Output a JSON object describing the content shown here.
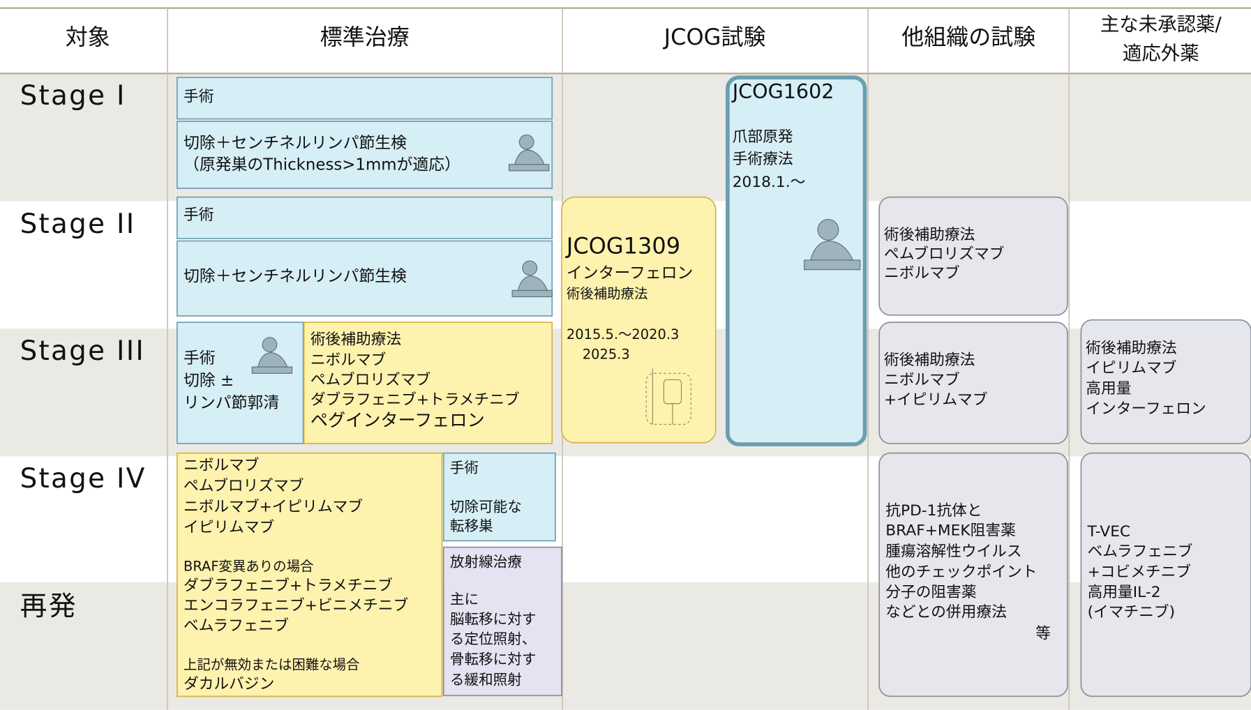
{
  "header": {
    "columns": [
      [
        "対象"
      ],
      [
        "標準治療"
      ],
      [
        "JCOG試験"
      ],
      [
        "他組織の試験"
      ],
      [
        "主な未承認薬/",
        "適応外薬"
      ]
    ]
  },
  "rows": [
    "Stage I",
    "Stage II",
    "Stage III",
    "Stage IV",
    "再発"
  ],
  "boxes": [
    {
      "lines": [
        "手術"
      ]
    },
    {
      "lines": [
        "切除＋センチネルリンパ節生検",
        "（原発巣のThickness>1mmが適応）"
      ]
    },
    {
      "lines": [
        "手術"
      ]
    },
    {
      "lines": [
        "切除＋センチネルリンパ節生検"
      ]
    },
    {
      "lines": [
        "手術",
        "切除 ±",
        "リンパ節郭清"
      ]
    },
    {
      "lines": [
        "術後補助療法",
        "ニボルマブ",
        "ペムブロリズマブ",
        "ダブラフェニブ+トラメチニブ",
        "ペグインターフェロン"
      ]
    },
    {
      "lines": [
        "JCOG1309",
        "インターフェロン",
        "術後補助療法",
        "2015.5.～2020.3",
        "2025.3"
      ]
    },
    {
      "lines": [
        "JCOG1602",
        "爪部原発",
        "手術療法",
        "2018.1.～"
      ]
    },
    {
      "lines": [
        "ニボルマブ",
        "ペムブロリズマブ",
        "ニボルマブ+イピリムマブ",
        "イピリムマブ",
        "BRAF変異ありの場合",
        "ダブラフェニブ+トラメチニブ",
        "エンコラフェニブ+ビニメチニブ",
        "ベムラフェニブ",
        "上記が無効または困難な場合",
        "ダカルバジン"
      ]
    },
    {
      "lines": [
        "手術",
        "切除可能な",
        "転移巣"
      ]
    },
    {
      "lines": [
        "放射線治療",
        "主に",
        "脳転移に対す",
        "る定位照射、",
        "骨転移に対す",
        "る緩和照射"
      ]
    },
    {
      "lines": [
        "術後補助療法",
        "ペムブロリズマブ",
        "ニボルマブ"
      ]
    },
    {
      "lines": [
        "術後補助療法",
        "ニボルマブ",
        "+イピリムマブ"
      ]
    },
    {
      "lines": [
        "術後補助療法",
        "イピリムマブ",
        "高用量",
        "インターフェロン"
      ]
    },
    {
      "lines": [
        "抗PD-1抗体と",
        "BRAF+MEK阻害薬",
        "腫瘍溶解性ウイルス",
        "他のチェックポイント",
        "分子の阻害薬",
        "などとの併用療法",
        "等"
      ]
    },
    {
      "lines": [
        "T-VEC",
        "ベムラフェニブ",
        "+コビメチニブ",
        "高用量IL-2",
        "(イマチニブ)"
      ]
    }
  ]
}
